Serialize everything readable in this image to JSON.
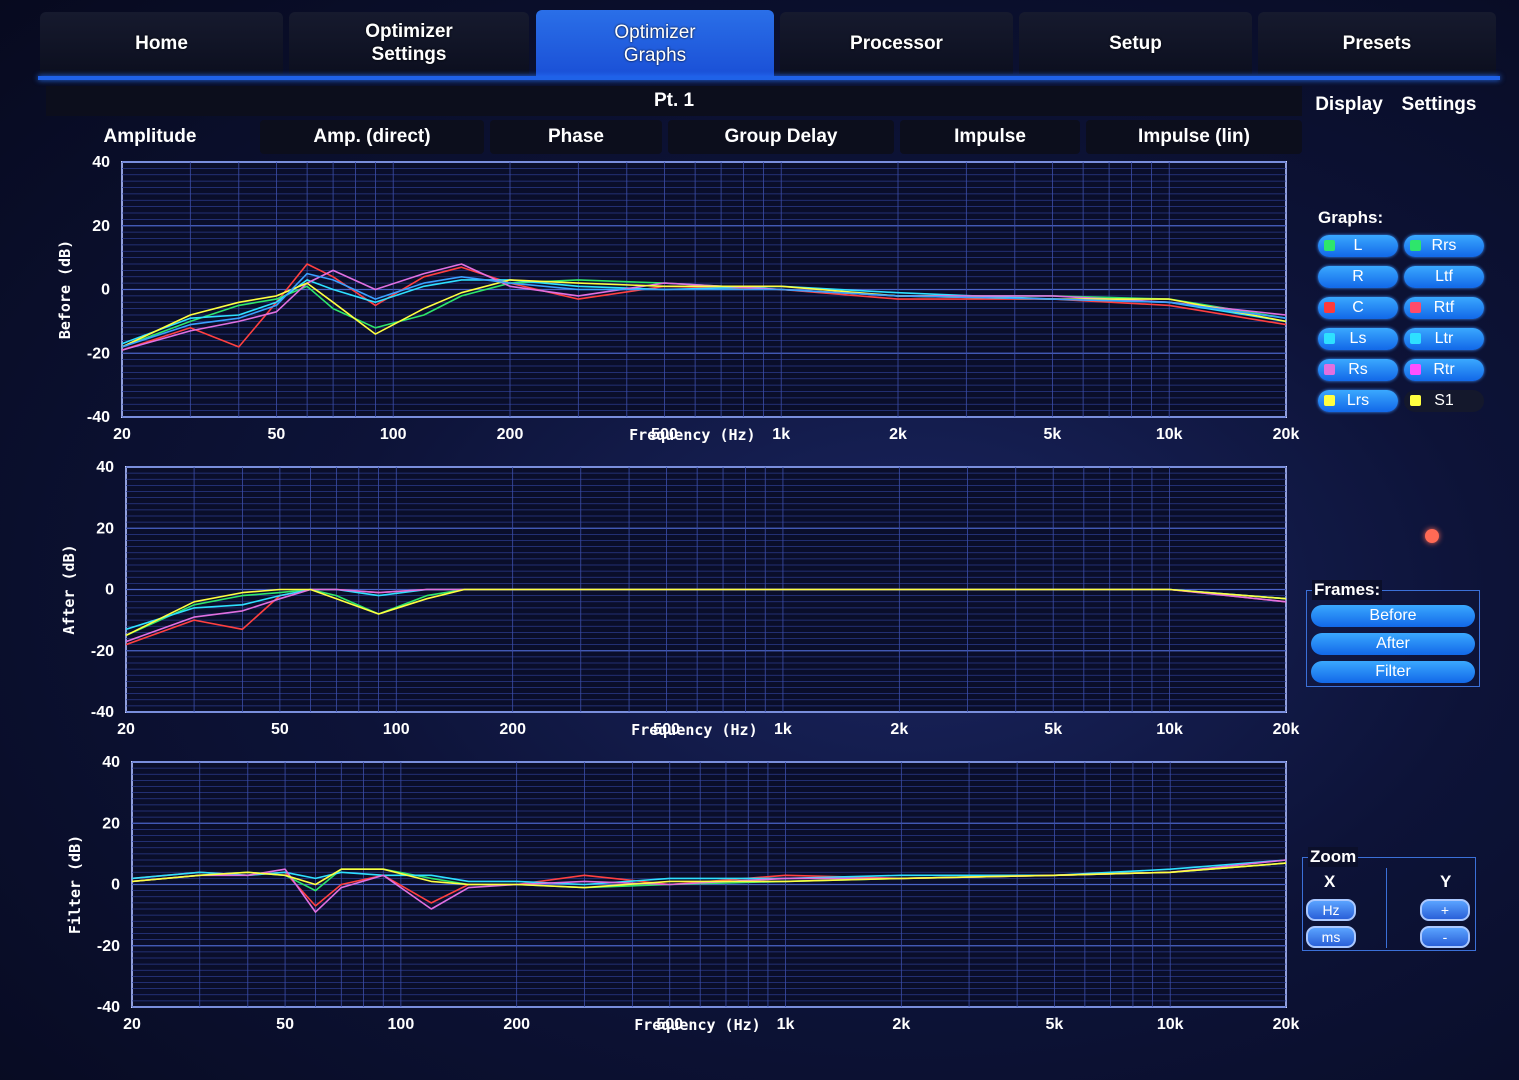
{
  "tabs": [
    {
      "label": "Home",
      "active": false
    },
    {
      "label": "Optimizer\nSettings",
      "active": false
    },
    {
      "label": "Optimizer\nGraphs",
      "active": true
    },
    {
      "label": "Processor",
      "active": false
    },
    {
      "label": "Setup",
      "active": false
    },
    {
      "label": "Presets",
      "active": false
    }
  ],
  "position_label": "Pt. 1",
  "subtabs": [
    "Amplitude",
    "Amp. (direct)",
    "Phase",
    "Group Delay",
    "Impulse",
    "Impulse (lin)"
  ],
  "side_tabs": {
    "display": "Display",
    "settings": "Settings"
  },
  "graphs_label": "Graphs:",
  "channels": [
    {
      "label": "L",
      "color": "#2ee66b"
    },
    {
      "label": "Rrs",
      "color": "#2ee66b"
    },
    {
      "label": "R",
      "color": ""
    },
    {
      "label": "Ltf",
      "color": ""
    },
    {
      "label": "C",
      "color": "#ff3a3a"
    },
    {
      "label": "Rtf",
      "color": "#ff4a6a"
    },
    {
      "label": "Ls",
      "color": "#2ee0ff"
    },
    {
      "label": "Ltr",
      "color": "#2ee0ff"
    },
    {
      "label": "Rs",
      "color": "#e070e0"
    },
    {
      "label": "Rtr",
      "color": "#ff50ff"
    },
    {
      "label": "Lrs",
      "color": "#ffff40"
    },
    {
      "label": "S1",
      "color": "#ffff40"
    }
  ],
  "frames_label": "Frames:",
  "frames": [
    "Before",
    "After",
    "Filter"
  ],
  "zoom": {
    "label": "Zoom",
    "x_label": "X",
    "y_label": "Y",
    "x_buttons": [
      "Hz",
      "ms"
    ],
    "y_buttons": [
      "+",
      "-"
    ]
  },
  "chart_data": [
    {
      "type": "line",
      "ylabel": "Before (dB)",
      "xlabel": "Frequency (Hz)",
      "x_scale": "log",
      "xlim": [
        20,
        20000
      ],
      "ylim": [
        -40,
        40
      ],
      "x_ticks": [
        "20",
        "50",
        "100",
        "200",
        "500",
        "1k",
        "2k",
        "5k",
        "10k",
        "20k"
      ],
      "y_ticks": [
        "40",
        "20",
        "0",
        "-20",
        "-40"
      ],
      "x": [
        20,
        30,
        40,
        50,
        60,
        70,
        90,
        120,
        150,
        200,
        300,
        500,
        1000,
        2000,
        5000,
        10000,
        20000
      ],
      "series": [
        {
          "color": "#ff4040",
          "values": [
            -19,
            -12,
            -18,
            -4,
            8,
            4,
            -5,
            4,
            7,
            2,
            -3,
            1,
            0,
            -3,
            -3,
            -5,
            -11
          ]
        },
        {
          "color": "#2ee66b",
          "values": [
            -18,
            -10,
            -5,
            -3,
            1,
            -6,
            -12,
            -8,
            -2,
            2,
            3,
            2,
            0,
            -2,
            -2,
            -3,
            -9
          ]
        },
        {
          "color": "#2ee0ff",
          "values": [
            -17,
            -9,
            -8,
            -4,
            3,
            0,
            -4,
            1,
            3,
            3,
            1,
            0,
            1,
            -1,
            -3,
            -4,
            -10
          ]
        },
        {
          "color": "#e070e0",
          "values": [
            -19,
            -13,
            -10,
            -7,
            2,
            6,
            0,
            5,
            8,
            1,
            -2,
            2,
            0,
            -2,
            -2,
            -4,
            -8
          ]
        },
        {
          "color": "#ffff40",
          "values": [
            -18,
            -8,
            -4,
            -2,
            2,
            -4,
            -14,
            -6,
            -1,
            3,
            2,
            1,
            1,
            -2,
            -3,
            -3,
            -10
          ]
        },
        {
          "color": "#3aa0ff",
          "values": [
            -18,
            -11,
            -9,
            -5,
            5,
            3,
            -3,
            2,
            4,
            2,
            0,
            0,
            0,
            -2,
            -3,
            -4,
            -9
          ]
        }
      ]
    },
    {
      "type": "line",
      "ylabel": "After (dB)",
      "xlabel": "Frequency (Hz)",
      "x_scale": "log",
      "xlim": [
        20,
        20000
      ],
      "ylim": [
        -40,
        40
      ],
      "x_ticks": [
        "20",
        "50",
        "100",
        "200",
        "500",
        "1k",
        "2k",
        "5k",
        "10k",
        "20k"
      ],
      "y_ticks": [
        "40",
        "20",
        "0",
        "-20",
        "-40"
      ],
      "x": [
        20,
        30,
        40,
        50,
        60,
        70,
        90,
        120,
        150,
        200,
        300,
        500,
        1000,
        2000,
        5000,
        10000,
        20000
      ],
      "series": [
        {
          "color": "#ff4040",
          "values": [
            -18,
            -10,
            -13,
            -2,
            0,
            0,
            -1,
            0,
            0,
            0,
            0,
            0,
            0,
            0,
            0,
            0,
            -4
          ]
        },
        {
          "color": "#2ee66b",
          "values": [
            -15,
            -5,
            -2,
            -1,
            0,
            -2,
            -8,
            -2,
            0,
            0,
            0,
            0,
            0,
            0,
            0,
            0,
            -3
          ]
        },
        {
          "color": "#2ee0ff",
          "values": [
            -13,
            -6,
            -5,
            -2,
            0,
            0,
            -2,
            0,
            0,
            0,
            0,
            0,
            0,
            0,
            0,
            0,
            -3
          ]
        },
        {
          "color": "#e070e0",
          "values": [
            -17,
            -9,
            -7,
            -3,
            0,
            0,
            -1,
            0,
            0,
            0,
            0,
            0,
            0,
            0,
            0,
            0,
            -4
          ]
        },
        {
          "color": "#ffff40",
          "values": [
            -15,
            -4,
            -1,
            0,
            0,
            -3,
            -8,
            -3,
            0,
            0,
            0,
            0,
            0,
            0,
            0,
            0,
            -3
          ]
        }
      ]
    },
    {
      "type": "line",
      "ylabel": "Filter (dB)",
      "xlabel": "Frequency (Hz)",
      "x_scale": "log",
      "xlim": [
        20,
        20000
      ],
      "ylim": [
        -40,
        40
      ],
      "x_ticks": [
        "20",
        "50",
        "100",
        "200",
        "500",
        "1k",
        "2k",
        "5k",
        "10k",
        "20k"
      ],
      "y_ticks": [
        "40",
        "20",
        "0",
        "-20",
        "-40"
      ],
      "x": [
        20,
        30,
        40,
        50,
        60,
        70,
        90,
        120,
        150,
        200,
        300,
        500,
        1000,
        2000,
        5000,
        10000,
        20000
      ],
      "series": [
        {
          "color": "#ff4040",
          "values": [
            2,
            4,
            3,
            4,
            -7,
            0,
            3,
            -6,
            0,
            0,
            3,
            0,
            3,
            2,
            3,
            4,
            7
          ]
        },
        {
          "color": "#2ee66b",
          "values": [
            1,
            3,
            4,
            3,
            -2,
            5,
            5,
            2,
            0,
            0,
            -1,
            0,
            1,
            2,
            3,
            4,
            7
          ]
        },
        {
          "color": "#2ee0ff",
          "values": [
            2,
            4,
            3,
            4,
            2,
            4,
            3,
            3,
            1,
            1,
            0,
            2,
            2,
            3,
            3,
            5,
            8
          ]
        },
        {
          "color": "#e070e0",
          "values": [
            1,
            3,
            3,
            5,
            -9,
            -1,
            3,
            -8,
            -1,
            0,
            1,
            0,
            2,
            2,
            3,
            4,
            8
          ]
        },
        {
          "color": "#ffff40",
          "values": [
            1,
            3,
            4,
            3,
            0,
            5,
            5,
            1,
            0,
            0,
            -1,
            1,
            1,
            2,
            3,
            4,
            7
          ]
        }
      ]
    }
  ]
}
